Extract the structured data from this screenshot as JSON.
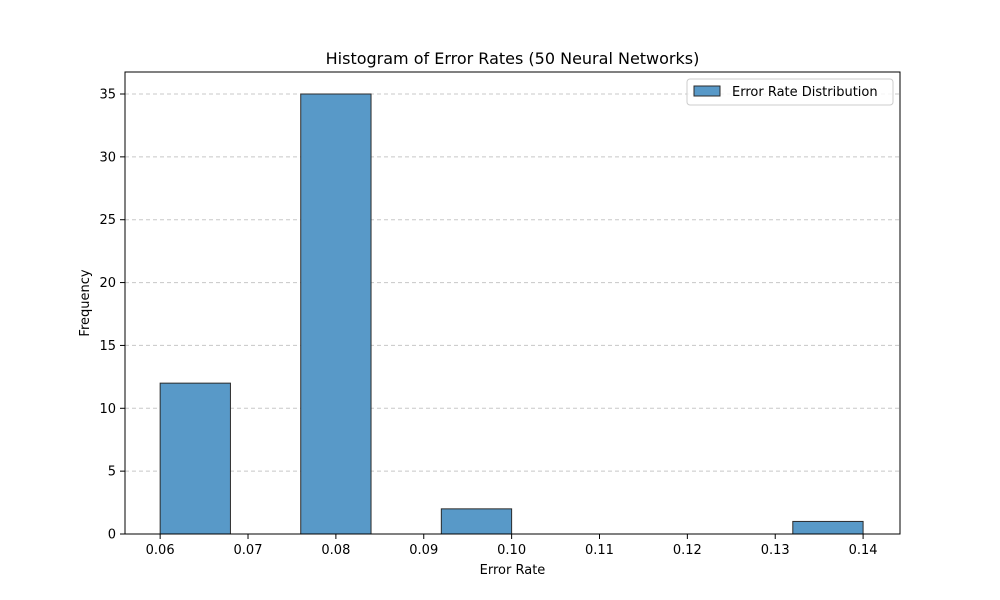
{
  "chart_data": {
    "type": "bar",
    "subtype": "histogram",
    "title": "Histogram of Error Rates (50 Neural Networks)",
    "xlabel": "Error Rate",
    "ylabel": "Frequency",
    "xlim": [
      0.056,
      0.1442
    ],
    "ylim": [
      0,
      36.75
    ],
    "xticks": [
      0.06,
      0.07,
      0.08,
      0.09,
      0.1,
      0.11,
      0.12,
      0.13,
      0.14
    ],
    "xtick_labels": [
      "0.06",
      "0.07",
      "0.08",
      "0.09",
      "0.10",
      "0.11",
      "0.12",
      "0.13",
      "0.14"
    ],
    "yticks": [
      0,
      5,
      10,
      15,
      20,
      25,
      30,
      35
    ],
    "ytick_labels": [
      "0",
      "5",
      "10",
      "15",
      "20",
      "25",
      "30",
      "35"
    ],
    "grid": {
      "axis": "y",
      "style": "dashed"
    },
    "bins": [
      {
        "x0": 0.06,
        "x1": 0.068,
        "count": 12
      },
      {
        "x0": 0.068,
        "x1": 0.076,
        "count": 0
      },
      {
        "x0": 0.076,
        "x1": 0.084,
        "count": 35
      },
      {
        "x0": 0.084,
        "x1": 0.092,
        "count": 0
      },
      {
        "x0": 0.092,
        "x1": 0.1,
        "count": 2
      },
      {
        "x0": 0.1,
        "x1": 0.108,
        "count": 0
      },
      {
        "x0": 0.108,
        "x1": 0.116,
        "count": 0
      },
      {
        "x0": 0.116,
        "x1": 0.124,
        "count": 0
      },
      {
        "x0": 0.124,
        "x1": 0.132,
        "count": 0
      },
      {
        "x0": 0.132,
        "x1": 0.14,
        "count": 1
      }
    ],
    "legend": {
      "label": "Error Rate Distribution",
      "position": "top-right"
    },
    "colors": {
      "bar": "#5899c8",
      "edge": "#2b2b2b",
      "grid": "#c8c8c8"
    }
  }
}
